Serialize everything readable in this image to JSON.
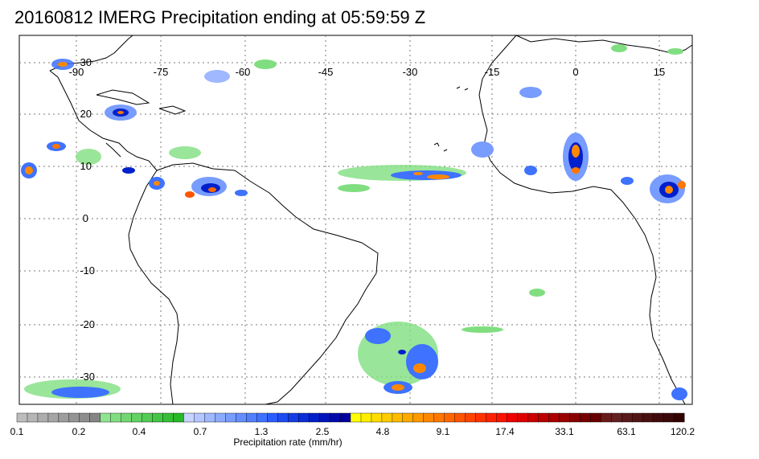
{
  "title": "20160812 IMERG Precipitation ending at 05:59:59 Z",
  "map": {
    "longitude_labels": [
      "-90",
      "-75",
      "-60",
      "-45",
      "-30",
      "-15",
      "0",
      "15"
    ],
    "latitude_labels": [
      "30",
      "20",
      "10",
      "0",
      "-10",
      "-20",
      "-30"
    ],
    "grid": "dotted"
  },
  "colorbar": {
    "tick_labels": [
      "0.1",
      "0.2",
      "0.4",
      "0.7",
      "1.3",
      "2.5",
      "4.8",
      "9.1",
      "17.4",
      "33.1",
      "63.1",
      "120.2"
    ],
    "units_label": "Precipitation rate (mm/hr)",
    "colors": [
      "#bdbdbd",
      "#b5b5b5",
      "#adadad",
      "#a5a5a5",
      "#9d9d9d",
      "#959595",
      "#8d8d8d",
      "#858585",
      "#8fe48f",
      "#80de80",
      "#71d871",
      "#62d262",
      "#53cc53",
      "#44c644",
      "#36bf36",
      "#28b828",
      "#c6d4ff",
      "#b3c6ff",
      "#9fb8ff",
      "#8caaff",
      "#789cff",
      "#658eff",
      "#5180ff",
      "#3e72ff",
      "#2a5cff",
      "#1f4cf2",
      "#143de5",
      "#0a2ed8",
      "#0020cb",
      "#0014bb",
      "#000aab",
      "#00009c",
      "#ffff00",
      "#ffee00",
      "#ffdd00",
      "#ffcc00",
      "#ffbb00",
      "#ffaa00",
      "#ff9900",
      "#ff8800",
      "#ff7700",
      "#ff6600",
      "#ff5500",
      "#ff4400",
      "#ff3300",
      "#ff2200",
      "#ff1100",
      "#ee0000",
      "#dd0000",
      "#cc0000",
      "#bb0000",
      "#aa0000",
      "#990000",
      "#880000",
      "#770000",
      "#660000",
      "#6a1a1a",
      "#622020",
      "#5a1a1a",
      "#521515",
      "#4a1010",
      "#420b0b",
      "#3a0808",
      "#330000"
    ]
  }
}
